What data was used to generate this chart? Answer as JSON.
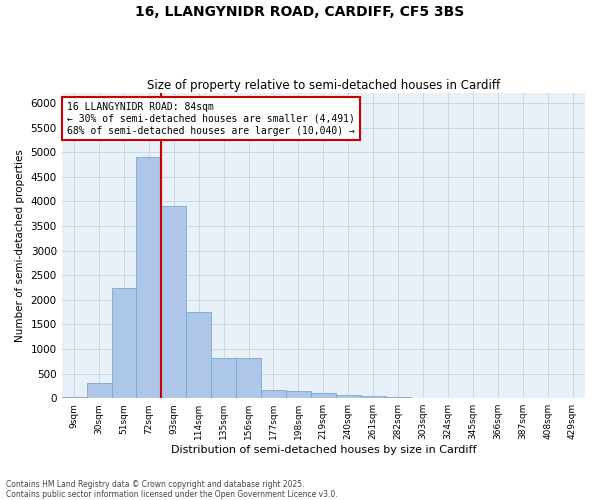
{
  "title_line1": "16, LLANGYNIDR ROAD, CARDIFF, CF5 3BS",
  "title_line2": "Size of property relative to semi-detached houses in Cardiff",
  "xlabel": "Distribution of semi-detached houses by size in Cardiff",
  "ylabel": "Number of semi-detached properties",
  "categories": [
    "9sqm",
    "30sqm",
    "51sqm",
    "72sqm",
    "93sqm",
    "114sqm",
    "135sqm",
    "156sqm",
    "177sqm",
    "198sqm",
    "219sqm",
    "240sqm",
    "261sqm",
    "282sqm",
    "303sqm",
    "324sqm",
    "345sqm",
    "366sqm",
    "387sqm",
    "408sqm",
    "429sqm"
  ],
  "values": [
    25,
    310,
    2250,
    4900,
    3900,
    1750,
    820,
    820,
    170,
    155,
    110,
    70,
    45,
    25,
    12,
    6,
    4,
    2,
    1,
    1,
    0
  ],
  "bar_color": "#aec6e8",
  "bar_edge_color": "#7aa8d0",
  "highlight_label": "16 LLANGYNIDR ROAD: 84sqm",
  "pct_smaller": 30,
  "pct_larger": 68,
  "n_smaller": 4491,
  "n_larger": 10040,
  "vline_color": "#cc0000",
  "vline_index": 3.5,
  "ylim": [
    0,
    6200
  ],
  "yticks": [
    0,
    500,
    1000,
    1500,
    2000,
    2500,
    3000,
    3500,
    4000,
    4500,
    5000,
    5500,
    6000
  ],
  "grid_color": "#c8d8ea",
  "bg_color": "#e8f0f8",
  "footnote": "Contains HM Land Registry data © Crown copyright and database right 2025.\nContains public sector information licensed under the Open Government Licence v3.0."
}
